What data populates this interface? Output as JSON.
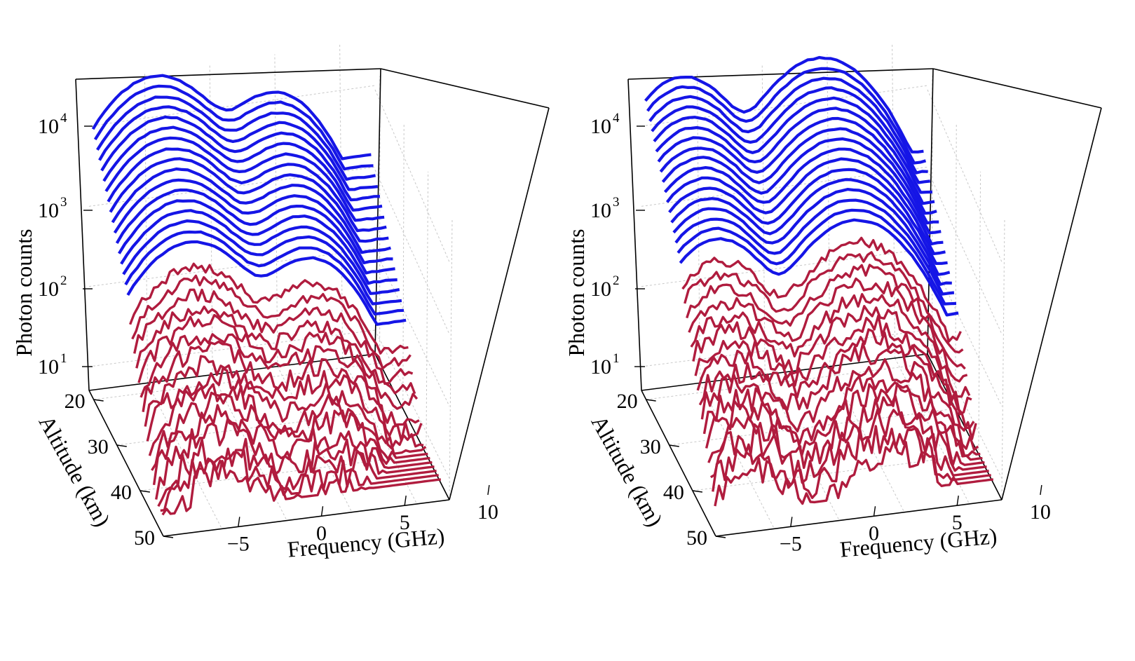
{
  "chart_data": [
    {
      "type": "line-3d-waterfall",
      "panel": "left",
      "zlabel": "Photon counts",
      "zscale": "log",
      "zticks": [
        {
          "base": "10",
          "exp": "1",
          "value": 10
        },
        {
          "base": "10",
          "exp": "2",
          "value": 100
        },
        {
          "base": "10",
          "exp": "3",
          "value": 1000
        },
        {
          "base": "10",
          "exp": "4",
          "value": 10000
        }
      ],
      "xlabel": "Frequency (GHz)",
      "xticks": [
        "−5",
        "0",
        "5",
        "10"
      ],
      "xtick_values": [
        -5,
        0,
        5,
        10
      ],
      "xlim": [
        -9.5,
        12.5
      ],
      "ylabel": "Altitude (km)",
      "yticks": [
        "20",
        "30",
        "40",
        "50"
      ],
      "ytick_values": [
        20,
        30,
        40,
        50
      ],
      "ylim": [
        18,
        50
      ],
      "grid": true,
      "series_groups": [
        {
          "color": "#1515e6",
          "count": 17,
          "altitude_range": [
            18,
            33
          ],
          "peak_counts_range": [
            33000,
            2000
          ],
          "noisy": false
        },
        {
          "color": "#b01c3e",
          "count": 16,
          "altitude_range": [
            34,
            48
          ],
          "peak_counts_range": [
            1100,
            18
          ],
          "noisy": true
        }
      ],
      "spectrum_shape": {
        "peaks_ghz": [
          -4.5,
          4.5
        ],
        "dominant_peak_ghz": -4.5,
        "secondary_peak_ratio": 0.32,
        "dip_ghz": 0
      }
    },
    {
      "type": "line-3d-waterfall",
      "panel": "right",
      "zlabel": "Photon counts",
      "zscale": "log",
      "zticks": [
        {
          "base": "10",
          "exp": "1",
          "value": 10
        },
        {
          "base": "10",
          "exp": "2",
          "value": 100
        },
        {
          "base": "10",
          "exp": "3",
          "value": 1000
        },
        {
          "base": "10",
          "exp": "4",
          "value": 10000
        }
      ],
      "xlabel": "Frequency (GHz)",
      "xticks": [
        "−5",
        "0",
        "5",
        "10"
      ],
      "xtick_values": [
        -5,
        0,
        5,
        10
      ],
      "xlim": [
        -9.5,
        12.5
      ],
      "ylabel": "Altitude (km)",
      "yticks": [
        "20",
        "30",
        "40",
        "50"
      ],
      "ytick_values": [
        20,
        30,
        40,
        50
      ],
      "ylim": [
        18,
        50
      ],
      "grid": true,
      "series_groups": [
        {
          "color": "#1515e6",
          "count": 17,
          "altitude_range": [
            18,
            33
          ],
          "peak_counts_range": [
            37000,
            2500
          ],
          "noisy": false
        },
        {
          "color": "#b01c3e",
          "count": 16,
          "altitude_range": [
            34,
            48
          ],
          "peak_counts_range": [
            1500,
            25
          ],
          "noisy": true
        }
      ],
      "spectrum_shape": {
        "peaks_ghz": [
          -6.5,
          4.0
        ],
        "dominant_peak_ghz": 4.0,
        "secondary_peak_ratio": 0.95,
        "dip_ghz": -1.5
      }
    }
  ]
}
